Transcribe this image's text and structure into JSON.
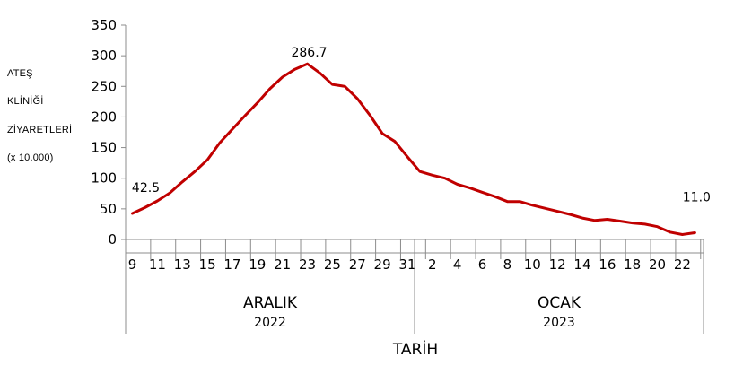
{
  "chart_data": {
    "type": "line",
    "ylabel_lines": [
      "ATEŞ",
      "KLİNİĞİ",
      "ZİYARETLERİ",
      "(x 10.000)"
    ],
    "xlabel": "TARİH",
    "ylim": [
      0,
      350
    ],
    "yticks": [
      0,
      50,
      100,
      150,
      200,
      250,
      300,
      350
    ],
    "grid": false,
    "x_tick_labels": [
      "9",
      "11",
      "13",
      "15",
      "17",
      "19",
      "21",
      "23",
      "25",
      "27",
      "29",
      "31",
      "2",
      "4",
      "6",
      "8",
      "10",
      "12",
      "14",
      "16",
      "18",
      "20",
      "22"
    ],
    "groups": [
      {
        "month": "ARALIK",
        "year": "2022"
      },
      {
        "month": "OCAK",
        "year": "2023"
      }
    ],
    "series": [
      {
        "color": "#c00000",
        "x": [
          "Dec 9",
          "Dec 10",
          "Dec 11",
          "Dec 12",
          "Dec 13",
          "Dec 14",
          "Dec 15",
          "Dec 16",
          "Dec 17",
          "Dec 18",
          "Dec 19",
          "Dec 20",
          "Dec 21",
          "Dec 22",
          "Dec 23",
          "Dec 24",
          "Dec 25",
          "Dec 26",
          "Dec 27",
          "Dec 28",
          "Dec 29",
          "Dec 30",
          "Dec 31",
          "Jan 1",
          "Jan 2",
          "Jan 3",
          "Jan 4",
          "Jan 5",
          "Jan 6",
          "Jan 7",
          "Jan 8",
          "Jan 9",
          "Jan 10",
          "Jan 11",
          "Jan 12",
          "Jan 13",
          "Jan 14",
          "Jan 15",
          "Jan 16",
          "Jan 17",
          "Jan 18",
          "Jan 19",
          "Jan 20",
          "Jan 21",
          "Jan 22",
          "Jan 23"
        ],
        "values": [
          42.5,
          52,
          63,
          76,
          94,
          111,
          130,
          158,
          180,
          202,
          223,
          246,
          265,
          278,
          286.7,
          272,
          253,
          250,
          230,
          203,
          173,
          160,
          135,
          111,
          105,
          100,
          90,
          84,
          77,
          70,
          62,
          62,
          56,
          51,
          46,
          41,
          35,
          31,
          33,
          30,
          27,
          25,
          21,
          12,
          8,
          11
        ]
      }
    ],
    "data_labels": [
      {
        "x": "Dec 9",
        "text": "42.5"
      },
      {
        "x": "Dec 23",
        "text": "286.7"
      },
      {
        "x": "Jan 23",
        "text": "11.0"
      }
    ]
  }
}
